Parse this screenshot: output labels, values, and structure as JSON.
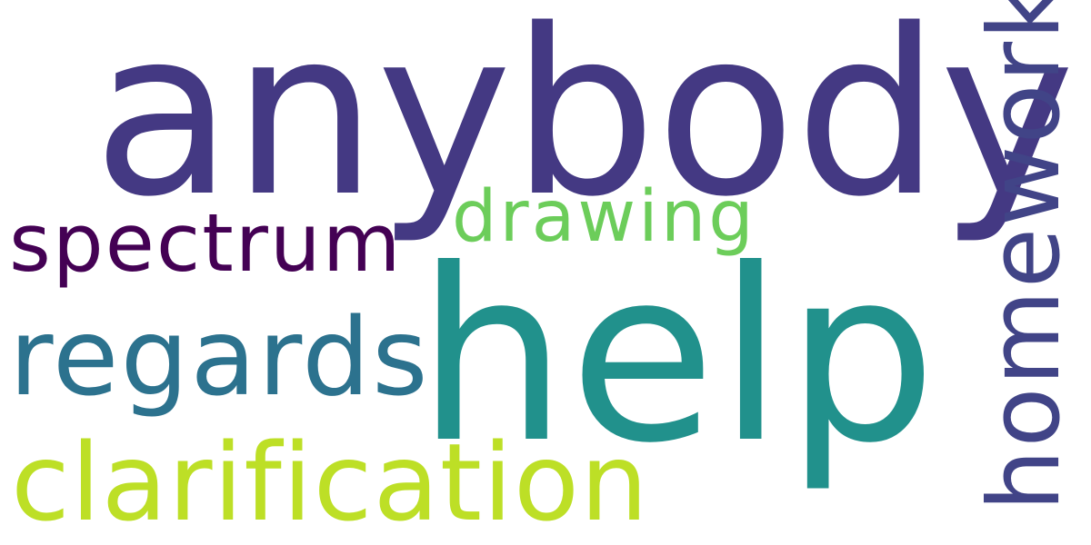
{
  "words": {
    "anybody": {
      "text": "anybody",
      "color": "#443983"
    },
    "help": {
      "text": "help",
      "color": "#21918c"
    },
    "homework": {
      "text": "homework",
      "color": "#414487"
    },
    "spectrum": {
      "text": "spectrum",
      "color": "#440154"
    },
    "drawing": {
      "text": "drawing",
      "color": "#6ccd5a"
    },
    "regards": {
      "text": "regards",
      "color": "#2c728e"
    },
    "clarification": {
      "text": "clarification",
      "color": "#bddf26"
    }
  },
  "background_color": "#ffffff",
  "palette": "viridis"
}
